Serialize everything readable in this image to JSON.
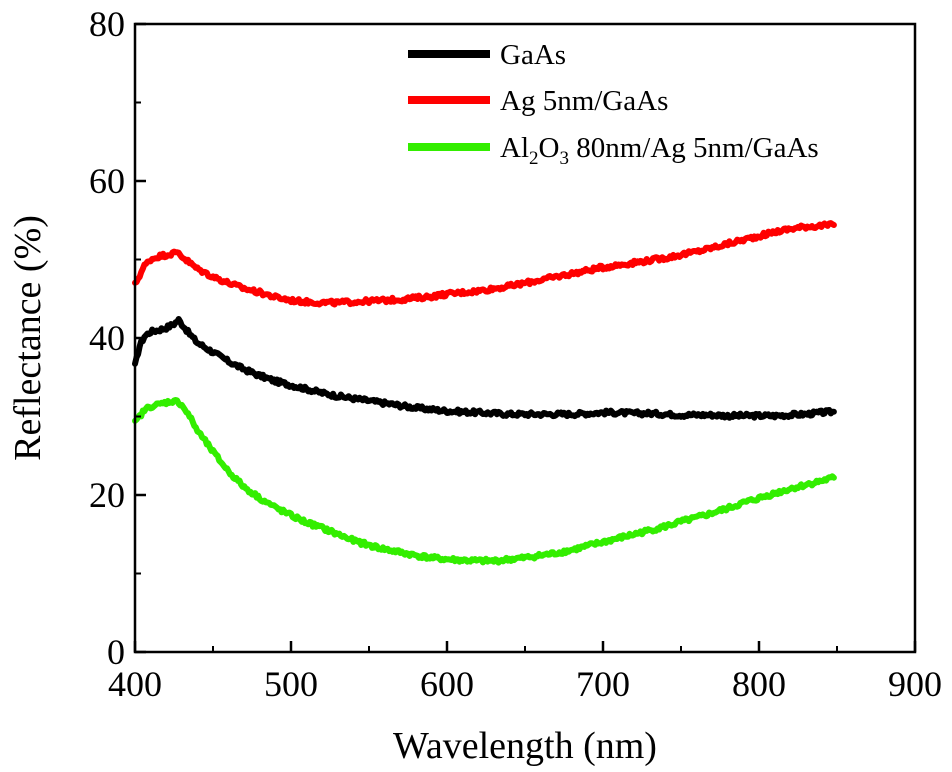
{
  "chart_data": {
    "type": "line",
    "xlabel": "Wavelength (nm)",
    "ylabel": "Reflectance (%)",
    "xlim": [
      400,
      900
    ],
    "ylim": [
      0,
      80
    ],
    "x_ticks": [
      400,
      500,
      600,
      700,
      800,
      900
    ],
    "y_ticks": [
      0,
      20,
      40,
      60,
      80
    ],
    "x_tick_labels": [
      "400",
      "500",
      "600",
      "700",
      "800",
      "900"
    ],
    "y_tick_labels": [
      "0",
      "20",
      "40",
      "60",
      "80"
    ],
    "grid": false,
    "legend_position": "top-right",
    "legend": {
      "gaas": "GaAs",
      "ag": "Ag 5nm/GaAs",
      "al_prefix": "Al",
      "al_sub1": "2",
      "al_mid": "O",
      "al_sub2": "3",
      "al_suffix": " 80nm/Ag 5nm/GaAs"
    },
    "x": [
      400,
      403,
      406,
      410,
      415,
      420,
      425,
      428,
      430,
      435,
      440,
      450,
      460,
      470,
      480,
      490,
      500,
      510,
      520,
      530,
      540,
      550,
      560,
      570,
      580,
      590,
      600,
      610,
      620,
      630,
      640,
      650,
      660,
      670,
      680,
      690,
      700,
      710,
      720,
      730,
      740,
      750,
      760,
      770,
      780,
      790,
      800,
      810,
      820,
      830,
      840,
      848
    ],
    "series": [
      {
        "name": "GaAs",
        "color": "#000000",
        "values": [
          36.5,
          39.0,
          40.2,
          40.8,
          41.0,
          41.3,
          41.8,
          42.3,
          41.8,
          40.5,
          39.4,
          38.2,
          37.0,
          36.0,
          35.2,
          34.5,
          34.0,
          33.5,
          33.0,
          32.6,
          32.3,
          32.0,
          31.7,
          31.4,
          31.1,
          30.9,
          30.7,
          30.6,
          30.5,
          30.4,
          30.3,
          30.3,
          30.3,
          30.3,
          30.3,
          30.4,
          30.5,
          30.5,
          30.4,
          30.4,
          30.3,
          30.2,
          30.2,
          30.2,
          30.1,
          30.1,
          30.1,
          30.1,
          30.2,
          30.3,
          30.5,
          30.6
        ]
      },
      {
        "name": "Ag 5nm/GaAs",
        "color": "#ff0000",
        "values": [
          46.8,
          48.0,
          49.2,
          50.0,
          50.4,
          50.6,
          50.8,
          50.9,
          50.4,
          49.6,
          48.8,
          47.8,
          47.0,
          46.3,
          45.8,
          45.2,
          44.8,
          44.6,
          44.5,
          44.5,
          44.6,
          44.7,
          44.8,
          44.9,
          45.1,
          45.3,
          45.6,
          45.8,
          46.0,
          46.3,
          46.6,
          47.0,
          47.4,
          47.8,
          48.2,
          48.6,
          49.0,
          49.3,
          49.6,
          49.9,
          50.2,
          50.6,
          51.0,
          51.5,
          52.0,
          52.5,
          53.0,
          53.5,
          53.9,
          54.2,
          54.3,
          54.4
        ]
      },
      {
        "name": "Al2O3 80nm/Ag 5nm/GaAs",
        "color": "#33ee00",
        "values": [
          29.2,
          30.0,
          30.8,
          31.3,
          31.5,
          31.8,
          32.0,
          31.8,
          31.5,
          30.0,
          28.2,
          25.5,
          23.0,
          21.0,
          19.6,
          18.4,
          17.4,
          16.5,
          15.8,
          15.0,
          14.2,
          13.6,
          13.1,
          12.7,
          12.3,
          12.0,
          11.8,
          11.7,
          11.6,
          11.6,
          11.8,
          12.0,
          12.3,
          12.6,
          13.0,
          13.5,
          14.0,
          14.5,
          15.0,
          15.5,
          16.0,
          16.6,
          17.1,
          17.7,
          18.3,
          19.0,
          19.6,
          20.2,
          20.8,
          21.3,
          21.8,
          22.2
        ]
      }
    ]
  }
}
